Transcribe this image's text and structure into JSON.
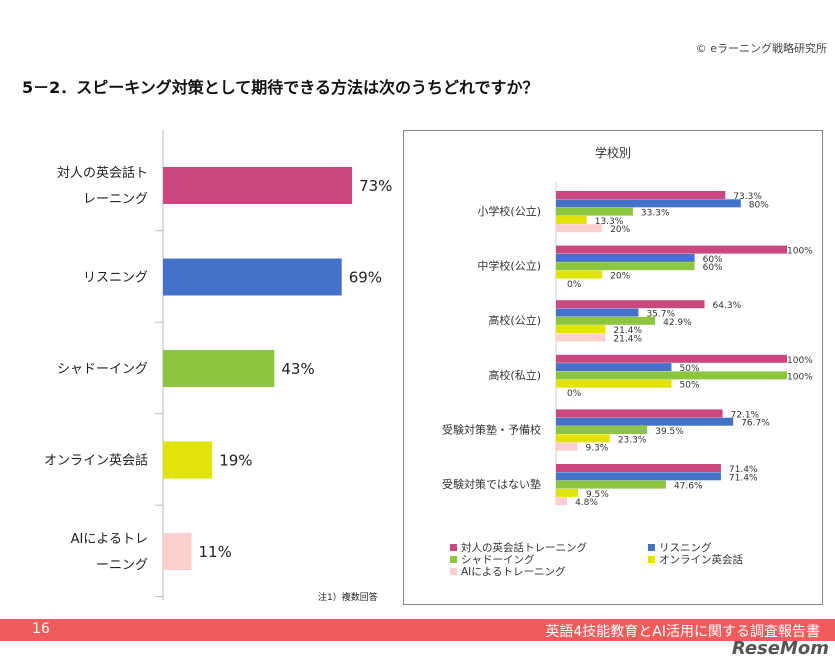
{
  "header": {
    "copyright": "© eラーニング戦略研究所",
    "title": "5－2．スピーキング対策として期待できる方法は次のうちどれですか？"
  },
  "footer": {
    "page": "16",
    "report_title": "英語4技能教育とAI活用に関する調査報告書",
    "logo": "ReseMom"
  },
  "note": "注1）複数回答",
  "chart_data": [
    {
      "type": "bar",
      "orientation": "horizontal",
      "categories": [
        "対人の英会話トレーニング",
        "リスニング",
        "シャドーイング",
        "オンライン英会話",
        "AIによるトレーニング"
      ],
      "category_lines": [
        [
          "対人の英会話ト",
          "レーニング"
        ],
        [
          "リスニング"
        ],
        [
          "シャドーイング"
        ],
        [
          "オンライン英会話"
        ],
        [
          "AIによるトレ",
          "ーニング"
        ]
      ],
      "values": [
        73,
        69,
        43,
        19,
        11
      ],
      "labels": [
        "73%",
        "69%",
        "43%",
        "19%",
        "11%"
      ],
      "colors": [
        "#cc4680",
        "#4472c9",
        "#8cc63e",
        "#e2e30a",
        "#fccfcf"
      ],
      "xlim": [
        0,
        100
      ],
      "grid": false
    },
    {
      "type": "bar",
      "orientation": "horizontal",
      "title": "学校別",
      "categories": [
        "小学校(公立)",
        "中学校(公立)",
        "高校(公立)",
        "高校(私立)",
        "受験対策塾・予備校",
        "受験対策ではない塾"
      ],
      "series": [
        {
          "name": "対人の英会話トレーニング",
          "color": "#cc4680",
          "values": [
            73.3,
            100,
            64.3,
            100,
            72.1,
            71.4
          ],
          "labels": [
            "73.3%",
            "100%",
            "64.3%",
            "100%",
            "72.1%",
            "71.4%"
          ]
        },
        {
          "name": "リスニング",
          "color": "#4472c9",
          "values": [
            80,
            60,
            35.7,
            50,
            76.7,
            71.4
          ],
          "labels": [
            "80%",
            "60%",
            "35.7%",
            "50%",
            "76.7%",
            "71.4%"
          ]
        },
        {
          "name": "シャドーイング",
          "color": "#8cc63e",
          "values": [
            33.3,
            60,
            42.9,
            100,
            39.5,
            47.6
          ],
          "labels": [
            "33.3%",
            "60%",
            "42.9%",
            "100%",
            "39.5%",
            "47.6%"
          ]
        },
        {
          "name": "オンライン英会話",
          "color": "#e2e30a",
          "values": [
            13.3,
            20,
            21.4,
            50,
            23.3,
            9.5
          ],
          "labels": [
            "13.3%",
            "20%",
            "21.4%",
            "50%",
            "23.3%",
            "9.5%"
          ]
        },
        {
          "name": "AIによるトレーニング",
          "color": "#fccfcf",
          "values": [
            20,
            0,
            21.4,
            0,
            9.3,
            4.8
          ],
          "labels": [
            "20%",
            "0%",
            "21.4%",
            "0%",
            "9.3%",
            "4.8%"
          ]
        }
      ],
      "xlim": [
        0,
        100
      ],
      "grid": false,
      "legend": "bottom"
    }
  ]
}
